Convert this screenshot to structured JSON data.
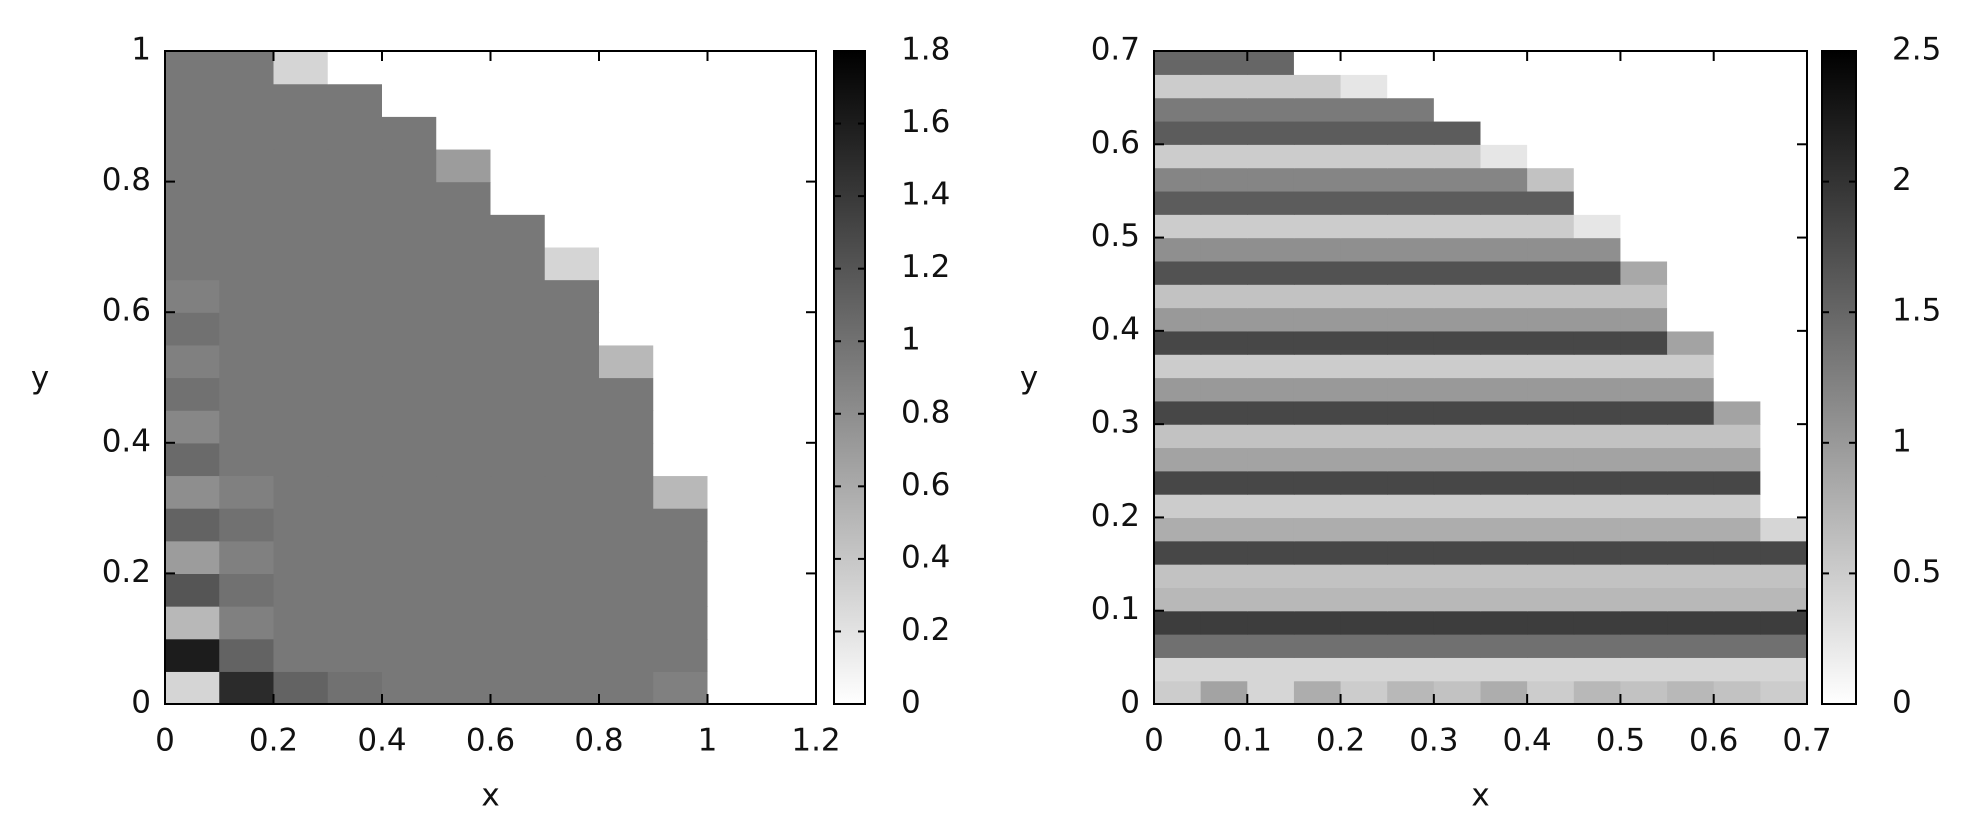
{
  "chart_data": [
    {
      "type": "heatmap",
      "xlabel": "x",
      "ylabel": "y",
      "xlim": [
        0,
        1.2
      ],
      "ylim": [
        0,
        1
      ],
      "xticks": [
        0,
        0.2,
        0.4,
        0.6,
        0.8,
        1,
        1.2
      ],
      "yticks": [
        0,
        0.2,
        0.4,
        0.6,
        0.8,
        1
      ],
      "zlim": [
        0,
        1.8
      ],
      "zticks": [
        0,
        0.2,
        0.4,
        0.6,
        0.8,
        1,
        1.2,
        1.4,
        1.6,
        1.8
      ],
      "colors": [
        "#ffffff",
        "#000000"
      ],
      "x": [
        0.05,
        0.15,
        0.25,
        0.35,
        0.45,
        0.55,
        0.65,
        0.75,
        0.85,
        0.95,
        1.05,
        1.15
      ],
      "y": [
        0.025,
        0.075,
        0.125,
        0.175,
        0.225,
        0.275,
        0.325,
        0.375,
        0.425,
        0.475,
        0.525,
        0.575,
        0.625,
        0.675,
        0.725,
        0.775,
        0.825,
        0.875,
        0.925,
        0.975
      ],
      "z": [
        [
          0.3,
          1.5,
          1.1,
          1.0,
          0.95,
          0.95,
          0.95,
          0.95,
          0.95,
          0.9,
          0,
          0
        ],
        [
          1.6,
          1.1,
          0.95,
          0.95,
          0.95,
          0.95,
          0.95,
          0.95,
          0.95,
          0.95,
          0,
          0
        ],
        [
          0.5,
          0.9,
          0.95,
          0.95,
          0.95,
          0.95,
          0.95,
          0.95,
          0.95,
          0.95,
          0,
          0
        ],
        [
          1.2,
          1.0,
          0.95,
          0.95,
          0.95,
          0.95,
          0.95,
          0.95,
          0.95,
          0.95,
          0,
          0
        ],
        [
          0.7,
          0.9,
          0.95,
          0.95,
          0.95,
          0.95,
          0.95,
          0.95,
          0.95,
          0.95,
          0,
          0
        ],
        [
          1.1,
          1.0,
          0.95,
          0.95,
          0.95,
          0.95,
          0.95,
          0.95,
          0.95,
          0.95,
          0,
          0
        ],
        [
          0.8,
          0.9,
          0.95,
          0.95,
          0.95,
          0.95,
          0.95,
          0.95,
          0.95,
          0.5,
          0,
          0
        ],
        [
          1.05,
          0.95,
          0.95,
          0.95,
          0.95,
          0.95,
          0.95,
          0.95,
          0.95,
          0,
          0,
          0
        ],
        [
          0.85,
          0.95,
          0.95,
          0.95,
          0.95,
          0.95,
          0.95,
          0.95,
          0.95,
          0,
          0,
          0
        ],
        [
          1.0,
          0.95,
          0.95,
          0.95,
          0.95,
          0.95,
          0.95,
          0.95,
          0.95,
          0,
          0,
          0
        ],
        [
          0.9,
          0.95,
          0.95,
          0.95,
          0.95,
          0.95,
          0.95,
          0.95,
          0.5,
          0,
          0,
          0
        ],
        [
          1.0,
          0.95,
          0.95,
          0.95,
          0.95,
          0.95,
          0.95,
          0.95,
          0,
          0,
          0,
          0
        ],
        [
          0.9,
          0.95,
          0.95,
          0.95,
          0.95,
          0.95,
          0.95,
          0.95,
          0,
          0,
          0,
          0
        ],
        [
          0.95,
          0.95,
          0.95,
          0.95,
          0.95,
          0.95,
          0.95,
          0.3,
          0,
          0,
          0,
          0
        ],
        [
          0.95,
          0.95,
          0.95,
          0.95,
          0.95,
          0.95,
          0.95,
          0,
          0,
          0,
          0,
          0
        ],
        [
          0.95,
          0.95,
          0.95,
          0.95,
          0.95,
          0.95,
          0,
          0,
          0,
          0,
          0,
          0
        ],
        [
          0.95,
          0.95,
          0.95,
          0.95,
          0.95,
          0.7,
          0,
          0,
          0,
          0,
          0,
          0
        ],
        [
          0.95,
          0.95,
          0.95,
          0.95,
          0.95,
          0,
          0,
          0,
          0,
          0,
          0,
          0
        ],
        [
          0.95,
          0.95,
          0.95,
          0.95,
          0,
          0,
          0,
          0,
          0,
          0,
          0,
          0
        ],
        [
          0.95,
          0.95,
          0.3,
          0,
          0,
          0,
          0,
          0,
          0,
          0,
          0,
          0
        ]
      ]
    },
    {
      "type": "heatmap",
      "xlabel": "x",
      "ylabel": "y",
      "xlim": [
        0,
        0.7
      ],
      "ylim": [
        0,
        0.7
      ],
      "xticks": [
        0,
        0.1,
        0.2,
        0.3,
        0.4,
        0.5,
        0.6,
        0.7
      ],
      "yticks": [
        0,
        0.1,
        0.2,
        0.3,
        0.4,
        0.5,
        0.6,
        0.7
      ],
      "zlim": [
        0,
        2.5
      ],
      "zticks": [
        0,
        0.5,
        1,
        1.5,
        2,
        2.5
      ],
      "colors": [
        "#ffffff",
        "#000000"
      ],
      "x": [
        0.025,
        0.075,
        0.125,
        0.175,
        0.225,
        0.275,
        0.325,
        0.375,
        0.425,
        0.475,
        0.525,
        0.575,
        0.625,
        0.675
      ],
      "y": [
        0.0125,
        0.0375,
        0.0625,
        0.0875,
        0.1125,
        0.1375,
        0.1625,
        0.1875,
        0.2125,
        0.2375,
        0.2625,
        0.2875,
        0.3125,
        0.3375,
        0.3625,
        0.3875,
        0.4125,
        0.4375,
        0.4625,
        0.4875,
        0.5125,
        0.5375,
        0.5625,
        0.5875,
        0.6125,
        0.6375,
        0.6625,
        0.6875
      ],
      "z": [
        [
          0.5,
          0.9,
          0.4,
          0.8,
          0.5,
          0.7,
          0.6,
          0.8,
          0.5,
          0.7,
          0.6,
          0.7,
          0.6,
          0.5
        ],
        [
          0.4,
          0.4,
          0.4,
          0.4,
          0.4,
          0.4,
          0.4,
          0.4,
          0.4,
          0.4,
          0.4,
          0.4,
          0.4,
          0.4
        ],
        [
          1.4,
          1.4,
          1.4,
          1.4,
          1.4,
          1.4,
          1.4,
          1.4,
          1.4,
          1.4,
          1.4,
          1.4,
          1.4,
          1.4
        ],
        [
          1.9,
          1.9,
          1.9,
          1.9,
          1.9,
          1.9,
          1.9,
          1.9,
          1.9,
          1.9,
          1.9,
          1.9,
          1.9,
          1.9
        ],
        [
          0.7,
          0.7,
          0.7,
          0.7,
          0.7,
          0.7,
          0.7,
          0.7,
          0.7,
          0.7,
          0.7,
          0.7,
          0.7,
          0.7
        ],
        [
          0.6,
          0.6,
          0.6,
          0.6,
          0.6,
          0.6,
          0.6,
          0.6,
          0.6,
          0.6,
          0.6,
          0.6,
          0.6,
          0.6
        ],
        [
          1.8,
          1.8,
          1.8,
          1.8,
          1.8,
          1.8,
          1.8,
          1.8,
          1.8,
          1.8,
          1.8,
          1.8,
          1.8,
          1.8
        ],
        [
          0.8,
          0.8,
          0.8,
          0.8,
          0.8,
          0.8,
          0.8,
          0.8,
          0.8,
          0.8,
          0.8,
          0.8,
          0.8,
          0.4
        ],
        [
          0.5,
          0.5,
          0.5,
          0.5,
          0.5,
          0.5,
          0.5,
          0.5,
          0.5,
          0.5,
          0.5,
          0.5,
          0.5,
          0
        ],
        [
          1.8,
          1.8,
          1.8,
          1.8,
          1.8,
          1.8,
          1.8,
          1.8,
          1.8,
          1.8,
          1.8,
          1.8,
          1.8,
          0
        ],
        [
          0.9,
          0.9,
          0.9,
          0.9,
          0.9,
          0.9,
          0.9,
          0.9,
          0.9,
          0.9,
          0.9,
          0.9,
          0.9,
          0
        ],
        [
          0.6,
          0.6,
          0.6,
          0.6,
          0.6,
          0.6,
          0.6,
          0.6,
          0.6,
          0.6,
          0.6,
          0.6,
          0.6,
          0
        ],
        [
          1.8,
          1.8,
          1.8,
          1.8,
          1.8,
          1.8,
          1.8,
          1.8,
          1.8,
          1.8,
          1.8,
          1.8,
          0.9,
          0
        ],
        [
          1.0,
          1.0,
          1.0,
          1.0,
          1.0,
          1.0,
          1.0,
          1.0,
          1.0,
          1.0,
          1.0,
          1.0,
          0,
          0
        ],
        [
          0.5,
          0.5,
          0.5,
          0.5,
          0.5,
          0.5,
          0.5,
          0.5,
          0.5,
          0.5,
          0.5,
          0.5,
          0,
          0
        ],
        [
          1.8,
          1.8,
          1.8,
          1.8,
          1.8,
          1.8,
          1.8,
          1.8,
          1.8,
          1.8,
          1.8,
          0.9,
          0,
          0
        ],
        [
          1.0,
          1.0,
          1.0,
          1.0,
          1.0,
          1.0,
          1.0,
          1.0,
          1.0,
          1.0,
          1.0,
          0,
          0,
          0
        ],
        [
          0.6,
          0.6,
          0.6,
          0.6,
          0.6,
          0.6,
          0.6,
          0.6,
          0.6,
          0.6,
          0.6,
          0,
          0,
          0
        ],
        [
          1.7,
          1.7,
          1.7,
          1.7,
          1.7,
          1.7,
          1.7,
          1.7,
          1.7,
          1.7,
          0.85,
          0,
          0,
          0
        ],
        [
          1.1,
          1.1,
          1.1,
          1.1,
          1.1,
          1.1,
          1.1,
          1.1,
          1.1,
          1.1,
          0,
          0,
          0,
          0
        ],
        [
          0.5,
          0.5,
          0.5,
          0.5,
          0.5,
          0.5,
          0.5,
          0.5,
          0.5,
          0.25,
          0,
          0,
          0,
          0
        ],
        [
          1.6,
          1.6,
          1.6,
          1.6,
          1.6,
          1.6,
          1.6,
          1.6,
          1.6,
          0,
          0,
          0,
          0,
          0
        ],
        [
          1.2,
          1.2,
          1.2,
          1.2,
          1.2,
          1.2,
          1.2,
          1.2,
          0.6,
          0,
          0,
          0,
          0,
          0
        ],
        [
          0.5,
          0.5,
          0.5,
          0.5,
          0.5,
          0.5,
          0.5,
          0.25,
          0,
          0,
          0,
          0,
          0,
          0
        ],
        [
          1.6,
          1.6,
          1.6,
          1.6,
          1.6,
          1.6,
          1.6,
          0,
          0,
          0,
          0,
          0,
          0,
          0
        ],
        [
          1.3,
          1.3,
          1.3,
          1.3,
          1.3,
          1.3,
          0,
          0,
          0,
          0,
          0,
          0,
          0,
          0
        ],
        [
          0.5,
          0.5,
          0.5,
          0.5,
          0.25,
          0,
          0,
          0,
          0,
          0,
          0,
          0,
          0,
          0
        ],
        [
          1.5,
          1.5,
          1.5,
          0,
          0,
          0,
          0,
          0,
          0,
          0,
          0,
          0,
          0,
          0
        ]
      ]
    }
  ]
}
